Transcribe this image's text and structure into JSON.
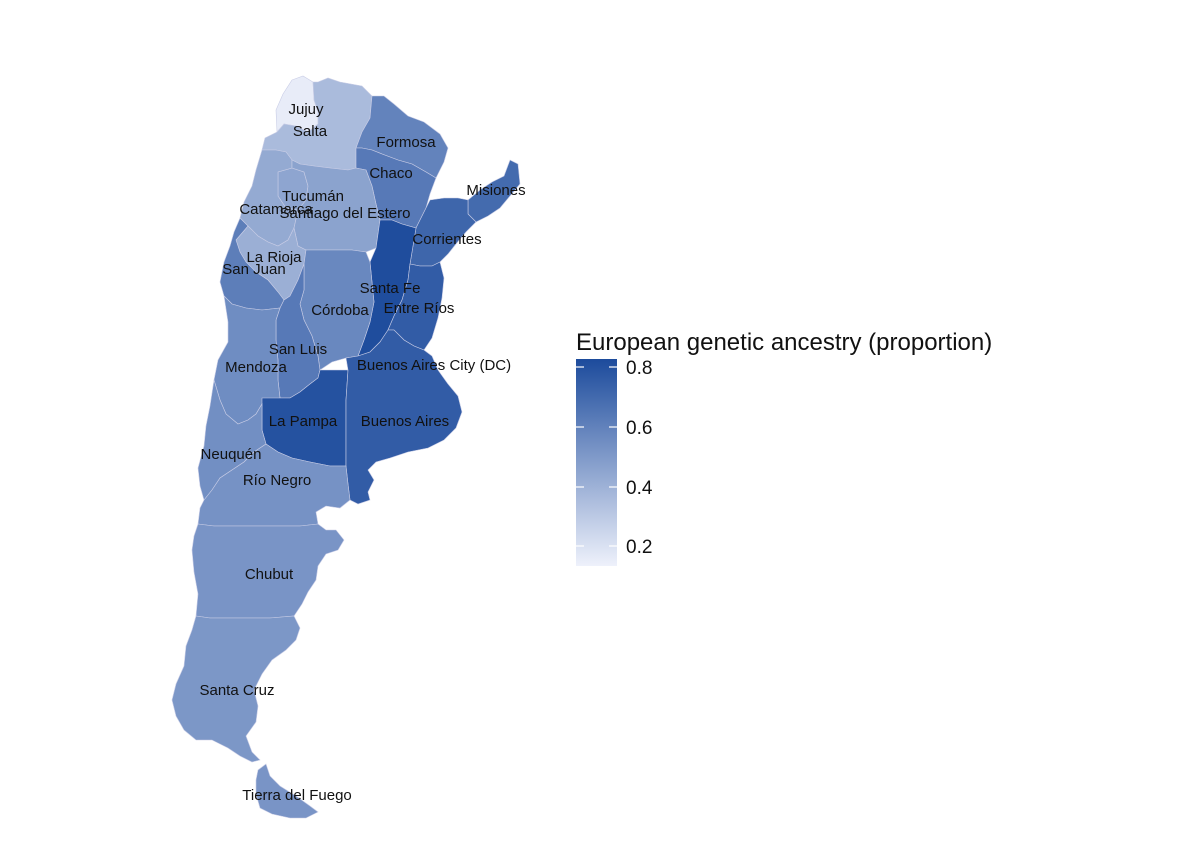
{
  "legend": {
    "title": "European genetic ancestry (proportion)",
    "ticks": [
      "0.8",
      "0.6",
      "0.4",
      "0.2"
    ],
    "color_low": "#eef1fb",
    "color_high": "#1c4b9c"
  },
  "provinces": [
    {
      "name": "Jujuy",
      "label": "Jujuy",
      "value": 0.17
    },
    {
      "name": "Salta",
      "label": "Salta",
      "value": 0.37
    },
    {
      "name": "Formosa",
      "label": "Formosa",
      "value": 0.6
    },
    {
      "name": "Chaco",
      "label": "Chaco",
      "value": 0.64
    },
    {
      "name": "Misiones",
      "label": "Misiones",
      "value": 0.7
    },
    {
      "name": "Tucumán",
      "label": "Tucumán",
      "value": 0.46
    },
    {
      "name": "Catamarca",
      "label": "Catamarca",
      "value": 0.44
    },
    {
      "name": "Santiago del Estero",
      "label": "Santiago del Estero",
      "value": 0.47
    },
    {
      "name": "Corrientes",
      "label": "Corrientes",
      "value": 0.72
    },
    {
      "name": "La Rioja",
      "label": "La Rioja",
      "value": 0.42
    },
    {
      "name": "San Juan",
      "label": "San Juan",
      "value": 0.62
    },
    {
      "name": "Santa Fe",
      "label": "Santa Fe",
      "value": 0.82
    },
    {
      "name": "Entre Ríos",
      "label": "Entre Ríos",
      "value": 0.76
    },
    {
      "name": "Córdoba",
      "label": "Córdoba",
      "value": 0.58
    },
    {
      "name": "San Luis",
      "label": "San Luis",
      "value": 0.64
    },
    {
      "name": "Mendoza",
      "label": "Mendoza",
      "value": 0.56
    },
    {
      "name": "Buenos Aires City (DC)",
      "label": "Buenos Aires City (DC)",
      "value": 0.78
    },
    {
      "name": "La Pampa",
      "label": "La Pampa",
      "value": 0.8
    },
    {
      "name": "Buenos Aires",
      "label": "Buenos Aires",
      "value": 0.76
    },
    {
      "name": "Neuquén",
      "label": "Neuquén",
      "value": 0.55
    },
    {
      "name": "Río Negro",
      "label": "Río Negro",
      "value": 0.54
    },
    {
      "name": "Chubut",
      "label": "Chubut",
      "value": 0.53
    },
    {
      "name": "Santa Cruz",
      "label": "Santa Cruz",
      "value": 0.52
    },
    {
      "name": "Tierra del Fuego",
      "label": "Tierra del Fuego",
      "value": 0.53
    }
  ]
}
